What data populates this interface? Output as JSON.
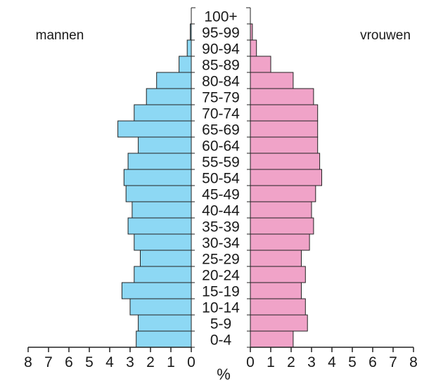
{
  "chart_data": {
    "type": "bar",
    "orientation": "horizontal",
    "layout": "population-pyramid",
    "categories": [
      "0-4",
      "5-9",
      "10-14",
      "15-19",
      "20-24",
      "25-29",
      "30-34",
      "35-39",
      "40-44",
      "45-49",
      "50-54",
      "55-59",
      "60-64",
      "65-69",
      "70-74",
      "75-79",
      "80-84",
      "85-89",
      "90-94",
      "95-99",
      "100+"
    ],
    "series": [
      {
        "name": "mannen",
        "side": "left",
        "color": "#8dd8f4",
        "values": [
          2.7,
          2.6,
          3.0,
          3.4,
          2.8,
          2.5,
          2.8,
          3.1,
          2.9,
          3.2,
          3.3,
          3.1,
          2.6,
          3.6,
          2.8,
          2.2,
          1.7,
          0.6,
          0.2,
          0.05,
          0.0
        ]
      },
      {
        "name": "vrouwen",
        "side": "right",
        "color": "#f0a3c8",
        "values": [
          2.1,
          2.8,
          2.7,
          2.5,
          2.7,
          2.5,
          2.9,
          3.1,
          3.0,
          3.2,
          3.5,
          3.4,
          3.3,
          3.3,
          3.3,
          3.1,
          2.1,
          1.0,
          0.3,
          0.1,
          0.0
        ]
      }
    ],
    "xlabel": "%",
    "xlim": [
      0,
      8
    ],
    "xticks": [
      8,
      7,
      6,
      5,
      4,
      3,
      2,
      1,
      0
    ],
    "grid": false
  }
}
